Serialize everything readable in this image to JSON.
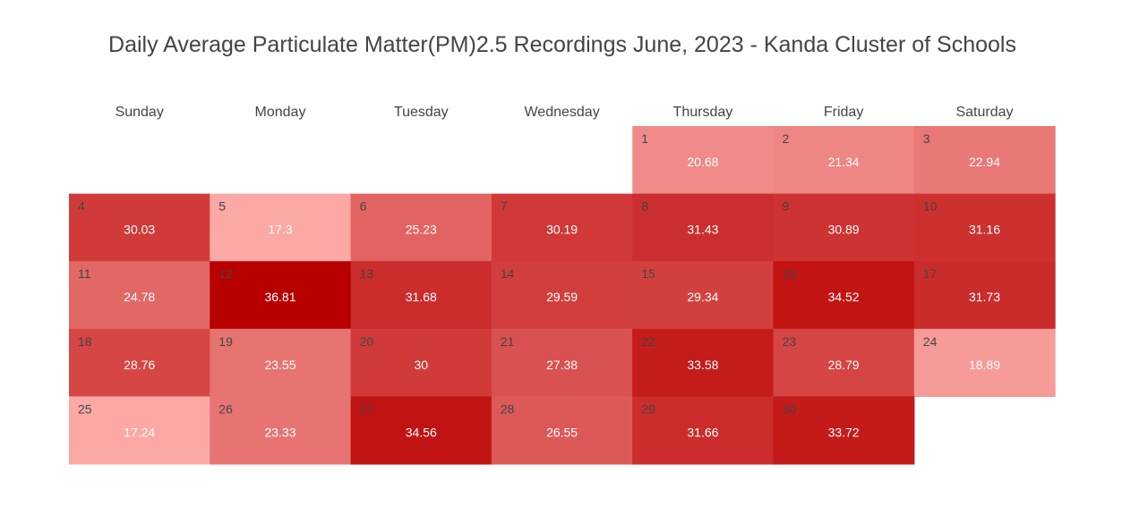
{
  "chart_data": {
    "type": "heatmap",
    "title": "Daily Average Particulate Matter(PM)2.5 Recordings June, 2023 - Kanda Cluster of Schools",
    "weekday_labels": [
      "Sunday",
      "Monday",
      "Tuesday",
      "Wednesday",
      "Thursday",
      "Friday",
      "Saturday"
    ],
    "first_weekday_index": 4,
    "days": [
      1,
      2,
      3,
      4,
      5,
      6,
      7,
      8,
      9,
      10,
      11,
      12,
      13,
      14,
      15,
      16,
      17,
      18,
      19,
      20,
      21,
      22,
      23,
      24,
      25,
      26,
      27,
      28,
      29,
      30
    ],
    "value_labels": [
      "20.68",
      "21.34",
      "22.94",
      "30.03",
      "17.3",
      "25.23",
      "30.19",
      "31.43",
      "30.89",
      "31.16",
      "24.78",
      "36.81",
      "31.68",
      "29.59",
      "29.34",
      "34.52",
      "31.73",
      "28.76",
      "23.55",
      "30",
      "27.38",
      "33.58",
      "28.79",
      "18.89",
      "17.24",
      "23.33",
      "34.56",
      "26.55",
      "31.66",
      "33.72"
    ],
    "values": [
      20.68,
      21.34,
      22.94,
      30.03,
      17.3,
      25.23,
      30.19,
      31.43,
      30.89,
      31.16,
      24.78,
      36.81,
      31.68,
      29.59,
      29.34,
      34.52,
      31.73,
      28.76,
      23.55,
      30,
      27.38,
      33.58,
      28.79,
      18.89,
      17.24,
      23.33,
      34.56,
      26.55,
      31.66,
      33.72
    ],
    "color_scale": {
      "low": "#fca9a6",
      "high": "#b90000"
    }
  }
}
